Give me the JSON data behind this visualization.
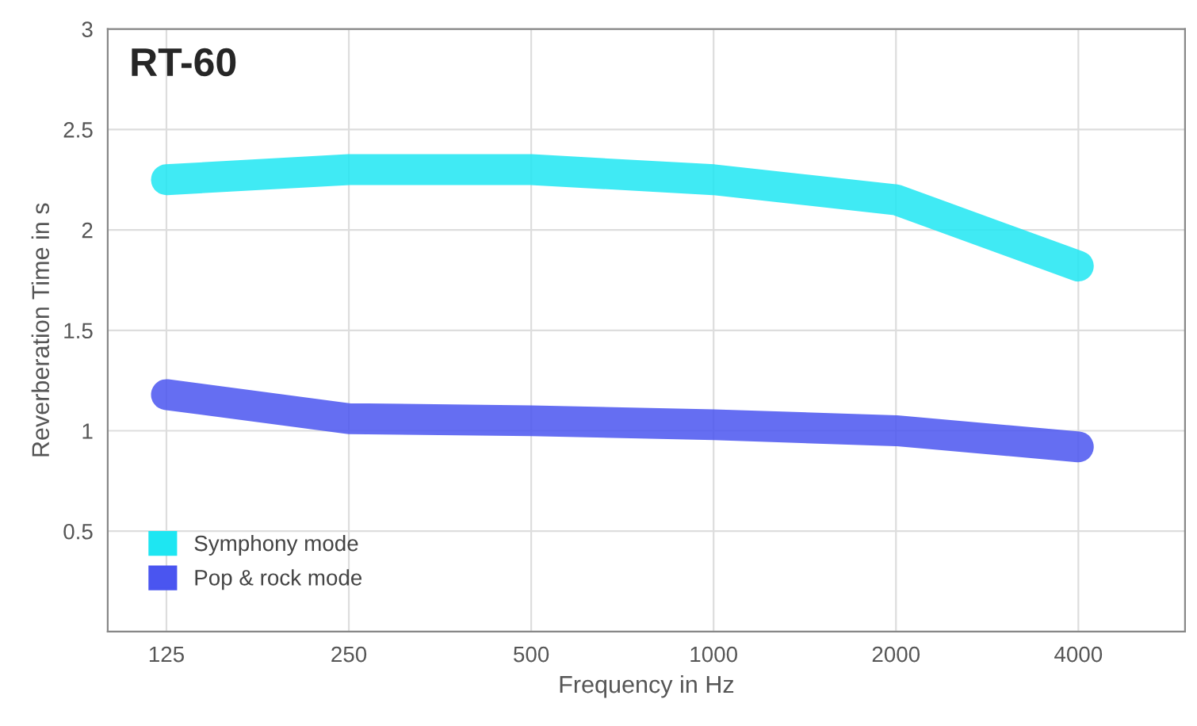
{
  "chart_data": {
    "type": "line",
    "title": "RT-60",
    "xlabel": "Frequency in Hz",
    "ylabel": "Reverberation Time in s",
    "x": [
      125,
      250,
      500,
      1000,
      2000,
      4000
    ],
    "series": [
      {
        "name": "Symphony mode",
        "color": "#1ee6f2",
        "values": [
          2.25,
          2.3,
          2.3,
          2.25,
          2.15,
          1.82
        ]
      },
      {
        "name": "Pop & rock mode",
        "color": "#4a55f0",
        "values": [
          1.18,
          1.06,
          1.05,
          1.03,
          1.0,
          0.92
        ]
      }
    ],
    "log": "x",
    "xlim": [
      100,
      6000
    ],
    "xticks": [
      125,
      250,
      500,
      1000,
      2000,
      4000
    ],
    "ylim": [
      0,
      3
    ],
    "yticks": [
      {
        "value": 0,
        "label": null
      },
      0.5,
      1,
      1.5,
      2,
      2.5,
      3
    ],
    "grid": true,
    "legend": "bottom left",
    "marker": "none",
    "line_style": "solid"
  }
}
